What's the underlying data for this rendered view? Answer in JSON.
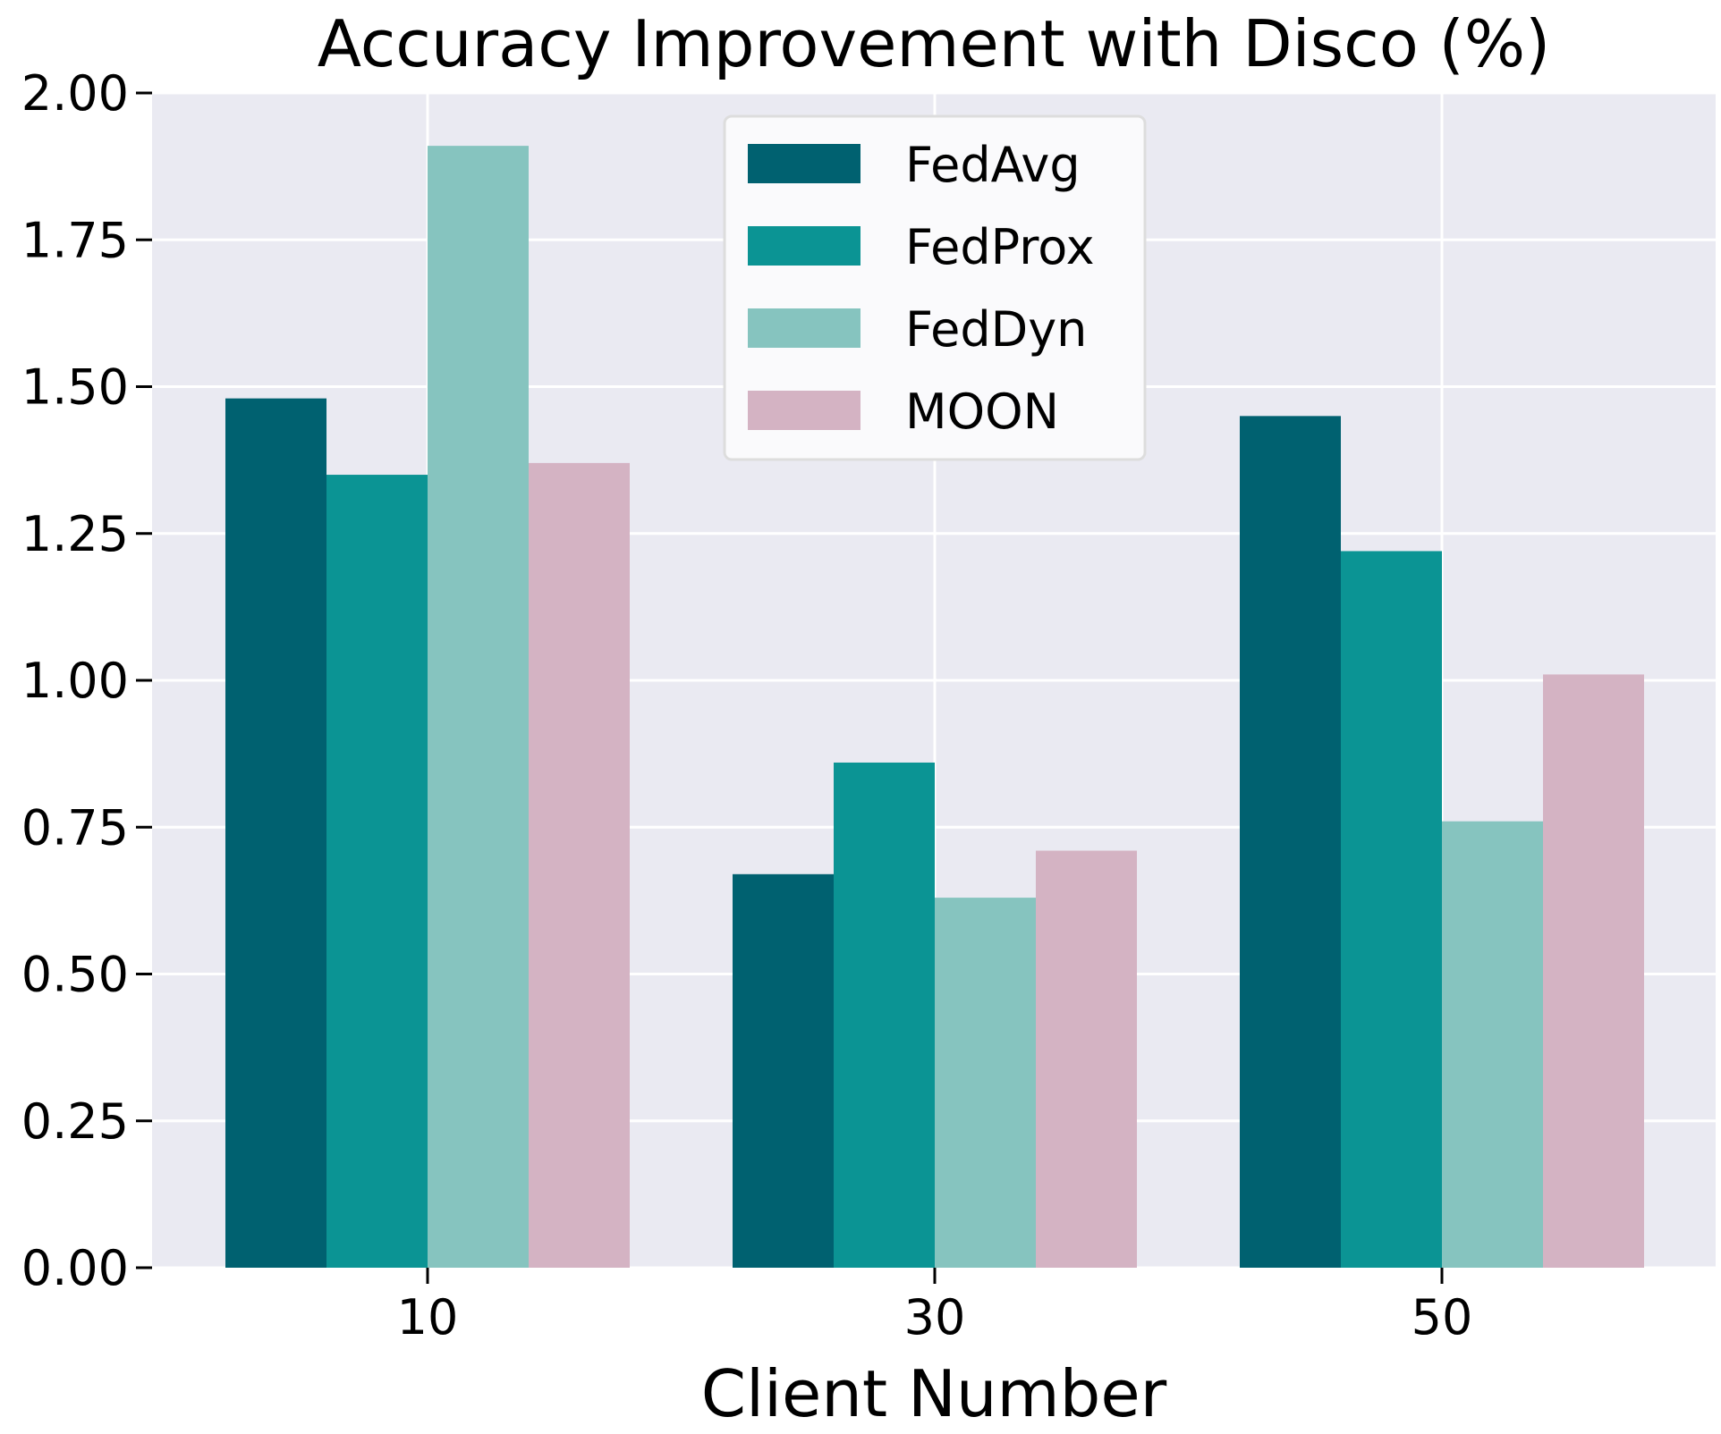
{
  "chart_data": {
    "type": "bar",
    "title": "Accuracy Improvement with Disco (%)",
    "xlabel": "Client Number",
    "ylabel": "",
    "categories": [
      "10",
      "30",
      "50"
    ],
    "series": [
      {
        "name": "FedAvg",
        "color": "#006170",
        "values": [
          1.48,
          0.67,
          1.45
        ]
      },
      {
        "name": "FedProx",
        "color": "#0b9494",
        "values": [
          1.35,
          0.86,
          1.22
        ]
      },
      {
        "name": "FedDyn",
        "color": "#86c4bf",
        "values": [
          1.91,
          0.63,
          0.76
        ]
      },
      {
        "name": "MOON",
        "color": "#d4b3c3",
        "values": [
          1.37,
          0.71,
          1.01
        ]
      }
    ],
    "ylim": [
      0,
      2.0
    ],
    "yticks": [
      "0.00",
      "0.25",
      "0.50",
      "0.75",
      "1.00",
      "1.25",
      "1.50",
      "1.75",
      "2.00"
    ],
    "grid": true,
    "legend_position": "top-center",
    "plot_background": "#eaeaf2",
    "grid_color": "#ffffff"
  }
}
